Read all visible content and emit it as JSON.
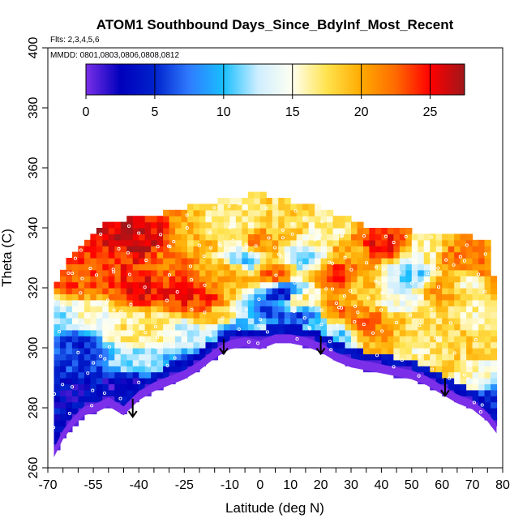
{
  "chart_data": {
    "type": "heatmap",
    "title": "ATOM1 Southbound Days_Since_BdyInf_Most_Recent",
    "flights_note": "Flts: 2,3,4,5,6",
    "mmdd_note": "MMDD: 0801,0803,0806,0808,0812",
    "xlabel": "Latitude (deg N)",
    "ylabel": "Theta (C)",
    "xlim": [
      -70,
      80
    ],
    "ylim": [
      260,
      400
    ],
    "x_ticks": [
      -70,
      -55,
      -40,
      -25,
      -10,
      0,
      10,
      20,
      30,
      40,
      50,
      60,
      70,
      80
    ],
    "y_ticks": [
      260,
      280,
      300,
      320,
      340,
      360,
      380,
      400
    ],
    "colorbar": {
      "range": [
        0,
        27.5
      ],
      "ticks": [
        0,
        5,
        10,
        15,
        20,
        25
      ],
      "stops": [
        {
          "v": 0,
          "color": "#7b2fe8"
        },
        {
          "v": 2.5,
          "color": "#0000bb"
        },
        {
          "v": 5,
          "color": "#0022cc"
        },
        {
          "v": 7.5,
          "color": "#2f7bff"
        },
        {
          "v": 10,
          "color": "#19bfff"
        },
        {
          "v": 12.5,
          "color": "#cfeeff"
        },
        {
          "v": 15,
          "color": "#fffff0"
        },
        {
          "v": 17.5,
          "color": "#ffe34d"
        },
        {
          "v": 20,
          "color": "#ffaa00"
        },
        {
          "v": 22.5,
          "color": "#ff6a00"
        },
        {
          "v": 25,
          "color": "#ff0000"
        },
        {
          "v": 27.5,
          "color": "#a0161a"
        }
      ]
    },
    "envelope": {
      "lat": [
        -68,
        -65,
        -62,
        -58,
        -54,
        -50,
        -45,
        -40,
        -35,
        -30,
        -25,
        -20,
        -15,
        -10,
        -5,
        0,
        5,
        10,
        15,
        20,
        25,
        30,
        35,
        40,
        45,
        50,
        55,
        60,
        65,
        70,
        75,
        78
      ],
      "theta_bottom": [
        264,
        270,
        274,
        278,
        279,
        281,
        278,
        283,
        286,
        288,
        290,
        293,
        297,
        300,
        301,
        300,
        302,
        302,
        301,
        299,
        296,
        294,
        293,
        292,
        291,
        290,
        288,
        285,
        282,
        280,
        276,
        272
      ],
      "theta_top": [
        318,
        326,
        330,
        334,
        338,
        341,
        342,
        343,
        343,
        345,
        346,
        347,
        348,
        349,
        350,
        351,
        349,
        348,
        347,
        346,
        344,
        342,
        340,
        340,
        339,
        338,
        338,
        338,
        337,
        336,
        335,
        316
      ]
    },
    "arrows": [
      {
        "lat": -42,
        "theta_from": 283,
        "theta_to": 277
      },
      {
        "lat": -12,
        "theta_from": 303,
        "theta_to": 298
      },
      {
        "lat": 20,
        "theta_from": 304,
        "theta_to": 298
      },
      {
        "lat": 61,
        "theta_from": 290,
        "theta_to": 284
      }
    ],
    "field": [
      {
        "lat": -65,
        "theta": 300,
        "days": 6
      },
      {
        "lat": -60,
        "theta": 300,
        "days": 4
      },
      {
        "lat": -55,
        "theta": 296,
        "days": 6
      },
      {
        "lat": -45,
        "theta": 296,
        "days": 12
      },
      {
        "lat": -35,
        "theta": 294,
        "days": 12
      },
      {
        "lat": -25,
        "theta": 293,
        "days": 4
      },
      {
        "lat": -60,
        "theta": 285,
        "days": 3
      },
      {
        "lat": -45,
        "theta": 288,
        "days": 2
      },
      {
        "lat": -30,
        "theta": 289,
        "days": 1
      },
      {
        "lat": -67,
        "theta": 310,
        "days": 12
      },
      {
        "lat": -55,
        "theta": 310,
        "days": 15
      },
      {
        "lat": -45,
        "theta": 305,
        "days": 17
      },
      {
        "lat": -35,
        "theta": 307,
        "days": 17
      },
      {
        "lat": -25,
        "theta": 305,
        "days": 13
      },
      {
        "lat": -20,
        "theta": 315,
        "days": 24
      },
      {
        "lat": -25,
        "theta": 318,
        "days": 25
      },
      {
        "lat": -15,
        "theta": 310,
        "days": 18
      },
      {
        "lat": -10,
        "theta": 305,
        "days": 8
      },
      {
        "lat": -5,
        "theta": 304,
        "days": 5
      },
      {
        "lat": 0,
        "theta": 305,
        "days": 14
      },
      {
        "lat": 5,
        "theta": 312,
        "days": 6
      },
      {
        "lat": 8,
        "theta": 318,
        "days": 4
      },
      {
        "lat": 12,
        "theta": 316,
        "days": 17
      },
      {
        "lat": 15,
        "theta": 310,
        "days": 6
      },
      {
        "lat": 18,
        "theta": 308,
        "days": 12
      },
      {
        "lat": 25,
        "theta": 304,
        "days": 11
      },
      {
        "lat": 25,
        "theta": 312,
        "days": 22
      },
      {
        "lat": 35,
        "theta": 308,
        "days": 22
      },
      {
        "lat": 40,
        "theta": 300,
        "days": 20
      },
      {
        "lat": 50,
        "theta": 298,
        "days": 16
      },
      {
        "lat": 60,
        "theta": 295,
        "days": 18
      },
      {
        "lat": 70,
        "theta": 290,
        "days": 15
      },
      {
        "lat": 76,
        "theta": 283,
        "days": 6
      },
      {
        "lat": 70,
        "theta": 302,
        "days": 18
      },
      {
        "lat": 75,
        "theta": 310,
        "days": 16
      },
      {
        "lat": -60,
        "theta": 322,
        "days": 23
      },
      {
        "lat": -50,
        "theta": 328,
        "days": 24
      },
      {
        "lat": -45,
        "theta": 338,
        "days": 26
      },
      {
        "lat": -40,
        "theta": 335,
        "days": 26
      },
      {
        "lat": -40,
        "theta": 320,
        "days": 25
      },
      {
        "lat": -30,
        "theta": 330,
        "days": 22
      },
      {
        "lat": -20,
        "theta": 335,
        "days": 19
      },
      {
        "lat": -10,
        "theta": 340,
        "days": 16
      },
      {
        "lat": -10,
        "theta": 325,
        "days": 20
      },
      {
        "lat": -5,
        "theta": 330,
        "days": 11
      },
      {
        "lat": 0,
        "theta": 335,
        "days": 21
      },
      {
        "lat": 5,
        "theta": 325,
        "days": 22
      },
      {
        "lat": 10,
        "theta": 340,
        "days": 18
      },
      {
        "lat": 15,
        "theta": 330,
        "days": 12
      },
      {
        "lat": 20,
        "theta": 338,
        "days": 16
      },
      {
        "lat": 25,
        "theta": 325,
        "days": 24
      },
      {
        "lat": 30,
        "theta": 332,
        "days": 20
      },
      {
        "lat": 35,
        "theta": 320,
        "days": 19
      },
      {
        "lat": 40,
        "theta": 335,
        "days": 25
      },
      {
        "lat": 45,
        "theta": 318,
        "days": 14
      },
      {
        "lat": 50,
        "theta": 325,
        "days": 11
      },
      {
        "lat": 55,
        "theta": 332,
        "days": 16
      },
      {
        "lat": 60,
        "theta": 320,
        "days": 20
      },
      {
        "lat": 65,
        "theta": 330,
        "days": 22
      },
      {
        "lat": 70,
        "theta": 322,
        "days": 16
      },
      {
        "lat": 75,
        "theta": 325,
        "days": 22
      }
    ]
  }
}
